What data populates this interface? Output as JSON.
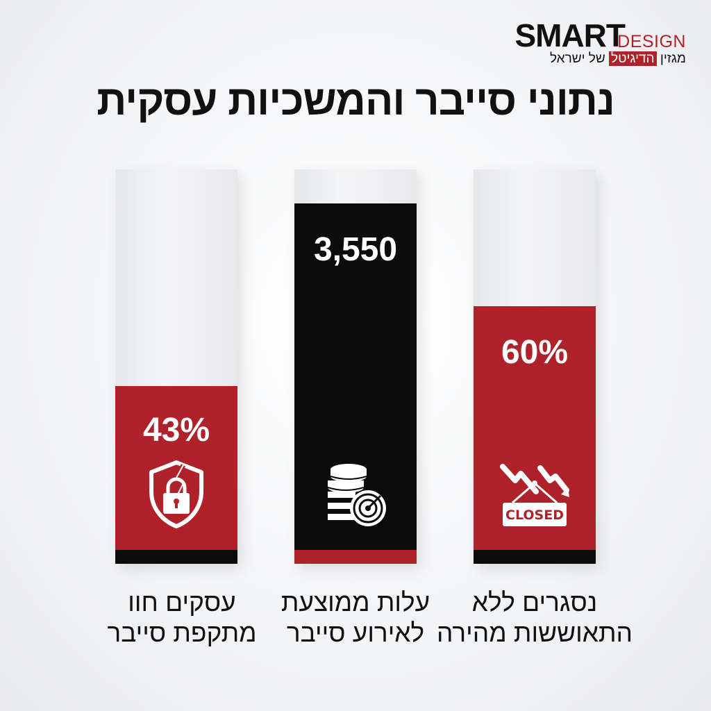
{
  "logo": {
    "brand_main": "SMART",
    "brand_sub": "DESIGN",
    "tagline_pre": "מגזין ",
    "tagline_highlight": "הדיגיטל",
    "tagline_post": " של ישראל"
  },
  "title": "נתוני סייבר והמשכיות עסקית",
  "colors": {
    "red": "#b0222a",
    "black": "#0b0b0b",
    "track": "#eceef0"
  },
  "chart_data": {
    "type": "bar",
    "title": "נתוני סייבר והמשכיות עסקית",
    "categories": [
      "נסגרים ללא התאוששות מהירה",
      "עלות ממוצעת לאירוע סייבר",
      "עסקים חוו מתקפת סייבר"
    ],
    "bars": [
      {
        "value_label": "60%",
        "value": 60,
        "fill_level": 0.64,
        "fill_color": "#b0222a",
        "base_color": "#0b0b0b",
        "icon": "closed-sign-icon",
        "label_lines": [
          "נסגרים ללא",
          "התאוששות מהירה"
        ]
      },
      {
        "value_label": "3,550",
        "value": 3550,
        "fill_level": 0.91,
        "fill_color": "#0b0b0b",
        "base_color": "#b0222a",
        "icon": "coins-target-icon",
        "label_lines": [
          "עלות ממוצעת",
          "לאירוע סייבר"
        ]
      },
      {
        "value_label": "43%",
        "value": 43,
        "fill_level": 0.43,
        "fill_color": "#b0222a",
        "base_color": "#0b0b0b",
        "icon": "broken-shield-lock-icon",
        "label_lines": [
          "עסקים חוו",
          "מתקפת סייבר"
        ]
      }
    ],
    "grid": false,
    "legend": "none"
  },
  "closed_sign_text": "CLOSED"
}
